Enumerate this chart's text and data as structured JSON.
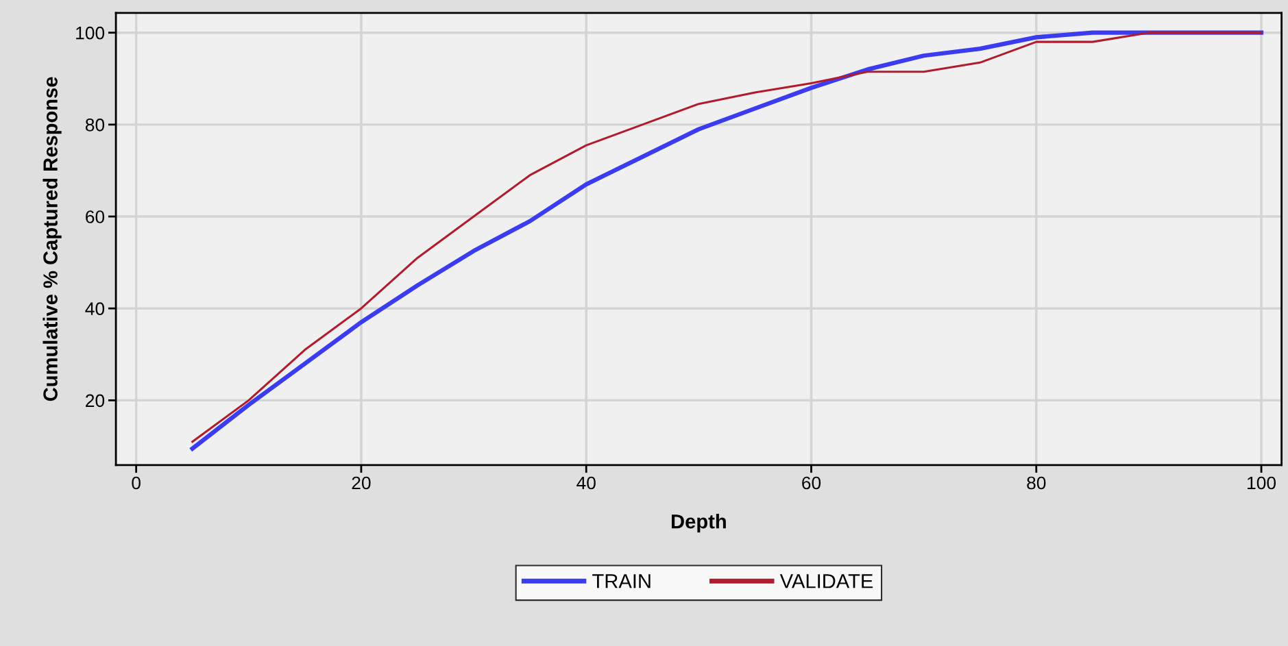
{
  "chart_data": {
    "type": "line",
    "xlabel": "Depth",
    "ylabel": "Cumulative % Captured Response",
    "x": [
      5,
      10,
      15,
      20,
      25,
      30,
      35,
      40,
      45,
      50,
      55,
      60,
      65,
      70,
      75,
      80,
      85,
      90,
      95,
      100
    ],
    "series": [
      {
        "name": "TRAIN",
        "color": "#3b3bf0",
        "values": [
          9.5,
          19,
          28,
          37,
          45,
          52.5,
          59,
          67,
          73,
          79,
          83.5,
          88,
          92,
          95,
          96.5,
          99,
          100,
          100,
          100,
          100
        ]
      },
      {
        "name": "VALIDATE",
        "color": "#b01c2e",
        "values": [
          11,
          20,
          31,
          40,
          51,
          60,
          69,
          75.5,
          80,
          84.5,
          87,
          89,
          91.5,
          91.5,
          93.5,
          98,
          98,
          100,
          100,
          100
        ]
      }
    ],
    "xlim": [
      -1.8,
      101.8
    ],
    "ylim": [
      5.9,
      104.3
    ],
    "xticks": [
      0,
      20,
      40,
      60,
      80,
      100
    ],
    "yticks": [
      20,
      40,
      60,
      80,
      100
    ],
    "grid": true,
    "legend": "bottom",
    "marker": "none",
    "line_style": "solid"
  }
}
